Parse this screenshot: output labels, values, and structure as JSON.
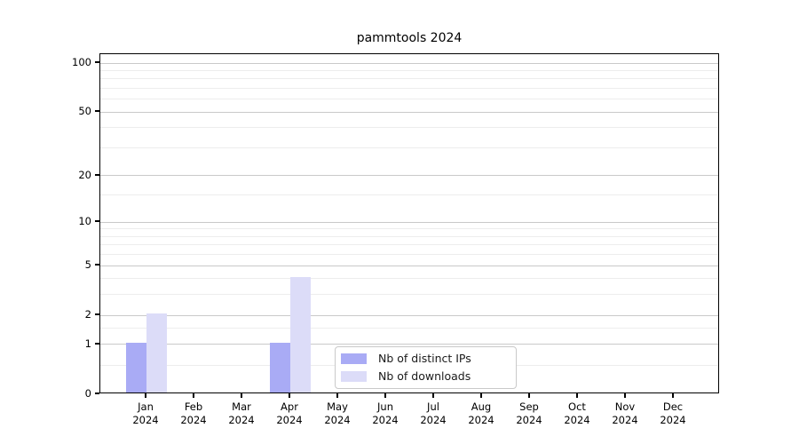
{
  "chart_data": {
    "type": "bar",
    "title": "pammtools 2024",
    "categories": [
      "Jan",
      "Feb",
      "Mar",
      "Apr",
      "May",
      "Jun",
      "Jul",
      "Aug",
      "Sep",
      "Oct",
      "Nov",
      "Dec"
    ],
    "year_label": "2024",
    "series": [
      {
        "name": "Nb of distinct IPs",
        "color": "#a9abf5",
        "values": [
          1,
          0,
          0,
          1,
          0,
          0,
          0,
          0,
          0,
          0,
          0,
          0
        ]
      },
      {
        "name": "Nb of downloads",
        "color": "#dcdcf8",
        "values": [
          2,
          0,
          0,
          4,
          0,
          0,
          0,
          0,
          0,
          0,
          0,
          0
        ]
      }
    ],
    "xlabel": "",
    "ylabel": "",
    "yscale": "log1p",
    "yticks": [
      0,
      1,
      2,
      5,
      10,
      20,
      50,
      100
    ],
    "yminor": [
      0.5,
      1.5,
      3,
      4,
      6,
      7,
      8,
      9,
      15,
      30,
      40,
      60,
      70,
      80,
      90
    ],
    "ylim": [
      0,
      113
    ],
    "grid": true,
    "legend_position": "lower-center-inside"
  },
  "colors": {
    "bar_distinct_ips": "#a9abf5",
    "bar_downloads": "#dcdcf8",
    "major_grid": "#c9c9c9",
    "minor_grid": "#ededed",
    "axis": "#000000",
    "legend_border": "#c9c9c9",
    "background": "#ffffff"
  }
}
